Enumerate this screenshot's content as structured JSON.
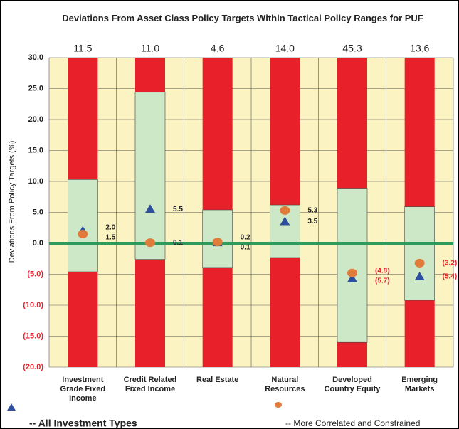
{
  "chart_data": {
    "type": "range_bar",
    "title": "Deviations From Asset Class Policy Targets Within Tactical Policy Ranges for PUF",
    "y_label": "Deviations From Policy Targets (%)",
    "categories": [
      "Investment Grade Fixed Income",
      "Credit Related Fixed Income",
      "Real Estate",
      "Natural Resources",
      "Developed Country Equity",
      "Emerging Markets"
    ],
    "header_values": [
      "11.5",
      "11.0",
      "4.6",
      "14.0",
      "45.3",
      "13.6"
    ],
    "range_low": [
      -4.6,
      -2.6,
      -3.9,
      -2.3,
      -16.0,
      -9.2
    ],
    "range_high": [
      10.3,
      24.4,
      5.4,
      6.2,
      8.9,
      5.9
    ],
    "range_color": "#cde8c6",
    "outside_color": "#e8202a",
    "plot_background": "#fbf3c2",
    "zero_line_color": "#2e9a5c",
    "negative_color": "#e8202a",
    "markers": [
      {
        "name": "-- All Investment Types",
        "shape": "triangle",
        "color": "#2e4f9e",
        "values": [
          2.0,
          5.5,
          0.1,
          3.5,
          -5.7,
          -5.4
        ],
        "value_labels": [
          "2.0",
          "5.5",
          "0.1",
          "3.5",
          "(5.7)",
          "(5.4)"
        ]
      },
      {
        "name": "-- More Correlated and Constrained",
        "shape": "circle",
        "color": "#e07b39",
        "values": [
          1.5,
          0.1,
          0.2,
          5.3,
          -4.8,
          -3.2
        ],
        "value_labels": [
          "1.5",
          "0.1",
          "0.2",
          "5.3",
          "(4.8)",
          "(3.2)"
        ]
      }
    ],
    "ylim": [
      -20,
      30
    ],
    "yticks": [
      {
        "value": -20,
        "label": "(20.0)"
      },
      {
        "value": -15,
        "label": "(15.0)"
      },
      {
        "value": -10,
        "label": "(10.0)"
      },
      {
        "value": -5,
        "label": "(5.0)"
      },
      {
        "value": 0,
        "label": "0.0"
      },
      {
        "value": 5,
        "label": "5.0"
      },
      {
        "value": 10,
        "label": "10.0"
      },
      {
        "value": 15,
        "label": "15.0"
      },
      {
        "value": 20,
        "label": "20.0"
      },
      {
        "value": 25,
        "label": "25.0"
      },
      {
        "value": 30,
        "label": "30.0"
      }
    ],
    "grid": true
  }
}
